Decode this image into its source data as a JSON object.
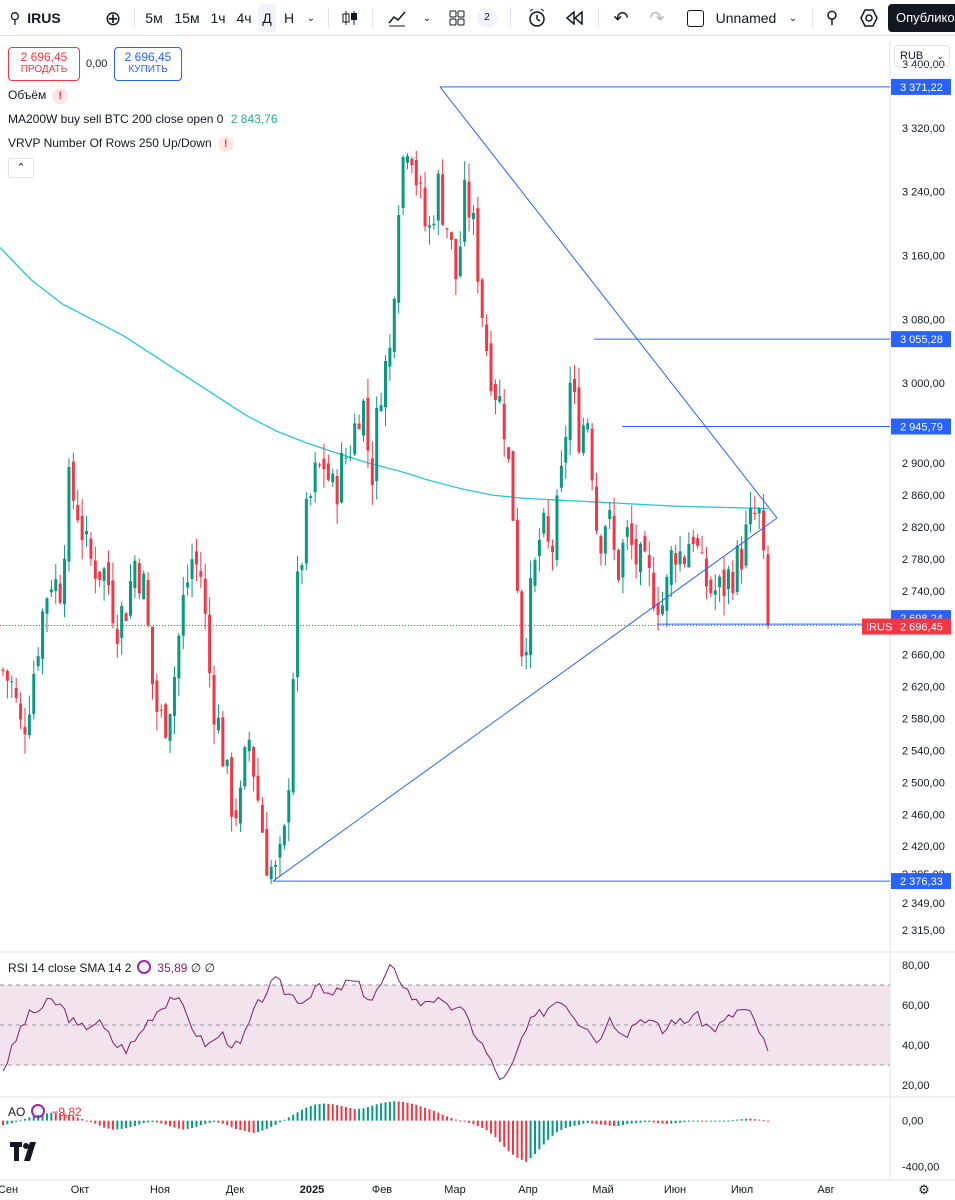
{
  "toolbar": {
    "symbol": "IRUS",
    "intervals": [
      "5м",
      "15м",
      "1ч",
      "4ч",
      "Д",
      "Н"
    ],
    "selected_interval": "Д",
    "layout_count": "2",
    "layout_name": "Unnamed",
    "publish_label": "Опублико"
  },
  "legend": {
    "sell_price": "2 696,45",
    "sell_label": "ПРОДАТЬ",
    "spread": "0,00",
    "buy_price": "2 696,45",
    "buy_label": "КУПИТЬ",
    "volume_label": "Объём",
    "ma_label": "MA200W buy sell BTC 200 close open 0",
    "ma_value": "2 843,76",
    "vrvp_label": "VRVP Number Of Rows 250 Up/Down",
    "currency": "RUB"
  },
  "rsi": {
    "label": "RSI 14 close SMA 14 2",
    "value": "35,89",
    "extra": "∅ ∅"
  },
  "ao": {
    "label": "AO",
    "value": "−9,82"
  },
  "colors": {
    "up": "#089981",
    "down": "#f23645",
    "ma": "#26c6da",
    "lines": "#2962ff",
    "rsi": "#7e1f6b",
    "rsi_band": "#f3e3ec"
  },
  "chart_data": [
    {
      "type": "candlestick",
      "symbol": "IRUS",
      "ylim": [
        2290,
        3430
      ],
      "y_ticks": [
        "3 400,00",
        "3 320,00",
        "3 240,00",
        "3 160,00",
        "3 080,00",
        "3 000,00",
        "2 900,00",
        "2 860,00",
        "2 820,00",
        "2 780,00",
        "2 740,00",
        "2 660,00",
        "2 620,00",
        "2 580,00",
        "2 540,00",
        "2 500,00",
        "2 460,00",
        "2 420,00",
        "2 385,00",
        "2 349,00",
        "2 315,00"
      ],
      "x_ticks": [
        "Сен",
        "Окт",
        "Ноя",
        "Дек",
        "2025",
        "Фев",
        "Мар",
        "Апр",
        "Май",
        "Июн",
        "Июл",
        "Авг"
      ],
      "price_labels": [
        {
          "text": "3 371,22",
          "value": 3371.22
        },
        {
          "text": "3 055,28",
          "value": 3055.28
        },
        {
          "text": "2 945,79",
          "value": 2945.79
        },
        {
          "text": "2 698,24",
          "value": 2698.24
        },
        {
          "text": "2 696,45",
          "value": 2696.45,
          "tag": "IRUS"
        },
        {
          "text": "2 376,33",
          "value": 2376.33
        }
      ],
      "close_waypoints": [
        2640,
        2620,
        2560,
        2620,
        2700,
        2760,
        2740,
        2870,
        2840,
        2780,
        2770,
        2760,
        2700,
        2720,
        2780,
        2740,
        2600,
        2570,
        2620,
        2720,
        2780,
        2760,
        2620,
        2560,
        2480,
        2460,
        2560,
        2480,
        2400,
        2380,
        2440,
        2720,
        2820,
        2880,
        2900,
        2860,
        2900,
        2930,
        2990,
        2880,
        3000,
        3040,
        3260,
        3320,
        3240,
        3180,
        3250,
        3200,
        3130,
        3240,
        3180,
        3060,
        3000,
        2960,
        2840,
        2660,
        2740,
        2820,
        2780,
        2860,
        3000,
        2940,
        2960,
        2800,
        2840,
        2760,
        2810,
        2780,
        2760,
        2740,
        2720,
        2800,
        2780,
        2820,
        2760,
        2740,
        2740,
        2760,
        2780,
        2820,
        2840,
        2700
      ]
    },
    {
      "type": "line",
      "name": "RSI",
      "ylim": [
        15,
        85
      ],
      "y_ticks": [
        "80,00",
        "60,00",
        "40,00",
        "20,00"
      ],
      "bands": [
        70,
        50,
        30
      ],
      "waypoints": [
        28,
        38,
        50,
        56,
        58,
        62,
        60,
        54,
        48,
        50,
        52,
        46,
        40,
        38,
        42,
        50,
        56,
        60,
        66,
        58,
        50,
        42,
        40,
        46,
        42,
        38,
        50,
        60,
        68,
        72,
        66,
        64,
        62,
        70,
        66,
        64,
        70,
        72,
        68,
        62,
        70,
        78,
        74,
        66,
        60,
        64,
        62,
        58,
        60,
        54,
        46,
        38,
        28,
        22,
        30,
        44,
        52,
        56,
        60,
        64,
        58,
        52,
        50,
        40,
        54,
        50,
        46,
        52,
        54,
        50,
        46,
        54,
        50,
        56,
        52,
        48,
        50,
        54,
        58,
        56,
        48,
        36
      ]
    },
    {
      "type": "bar",
      "name": "AO",
      "ylim": [
        -500,
        180
      ],
      "y_ticks": [
        "0,00",
        "-400,00"
      ],
      "waypoints": [
        -40,
        -20,
        10,
        40,
        60,
        70,
        60,
        40,
        10,
        -20,
        -60,
        -80,
        -70,
        -50,
        -20,
        -10,
        -30,
        -60,
        -80,
        -60,
        -30,
        -10,
        -30,
        -70,
        -90,
        -110,
        -80,
        -40,
        10,
        60,
        110,
        140,
        150,
        140,
        120,
        100,
        110,
        140,
        160,
        170,
        160,
        140,
        110,
        80,
        40,
        10,
        -10,
        -40,
        -80,
        -150,
        -250,
        -320,
        -360,
        -280,
        -180,
        -100,
        -60,
        -40,
        -20,
        -30,
        -40,
        -50,
        -30,
        -20,
        -10,
        -20,
        -30,
        -20,
        -10,
        -5,
        -10,
        -5,
        0,
        10,
        20,
        10,
        0
      ]
    },
    {
      "type": "line",
      "name": "MA200W",
      "waypoints": [
        3170,
        3130,
        3100,
        3080,
        3060,
        3035,
        3010,
        2985,
        2960,
        2940,
        2925,
        2912,
        2900,
        2890,
        2878,
        2868,
        2860,
        2856,
        2854,
        2852,
        2850,
        2848,
        2846,
        2845,
        2844,
        2843
      ]
    }
  ]
}
